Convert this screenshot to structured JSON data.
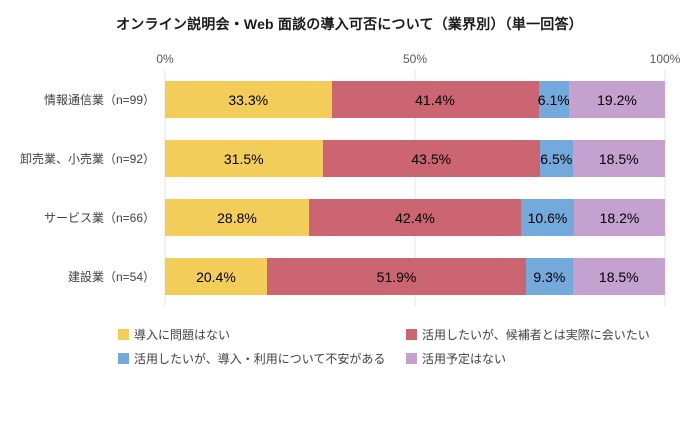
{
  "title": "オンライン説明会・Web 面談の導入可否について（業界別）（単一回答）",
  "chart_data": {
    "type": "bar",
    "orientation": "horizontal",
    "stacked": true,
    "title": "オンライン説明会・Web 面談の導入可否について（業界別）（単一回答）",
    "xlim": [
      0,
      100
    ],
    "x_ticks": [
      "0%",
      "50%",
      "100%"
    ],
    "grid": true,
    "legend_position": "bottom",
    "categories": [
      "情報通信業（n=99）",
      "卸売業、小売業（n=92）",
      "サービス業（n=66）",
      "建設業（n=54）"
    ],
    "series": [
      {
        "name": "導入に問題はない",
        "color": "#F2CD5A",
        "values": [
          33.3,
          31.5,
          28.8,
          20.4
        ]
      },
      {
        "name": "活用したいが、候補者とは実際に会いたい",
        "color": "#CB6572",
        "values": [
          41.4,
          43.5,
          42.4,
          51.9
        ]
      },
      {
        "name": "活用したいが、導入・利用について不安がある",
        "color": "#74A9DC",
        "values": [
          6.1,
          6.5,
          10.6,
          9.3
        ]
      },
      {
        "name": "活用予定はない",
        "color": "#C4A1CF",
        "values": [
          19.2,
          18.5,
          18.2,
          18.5
        ]
      }
    ],
    "value_label_format": "{value}%"
  }
}
